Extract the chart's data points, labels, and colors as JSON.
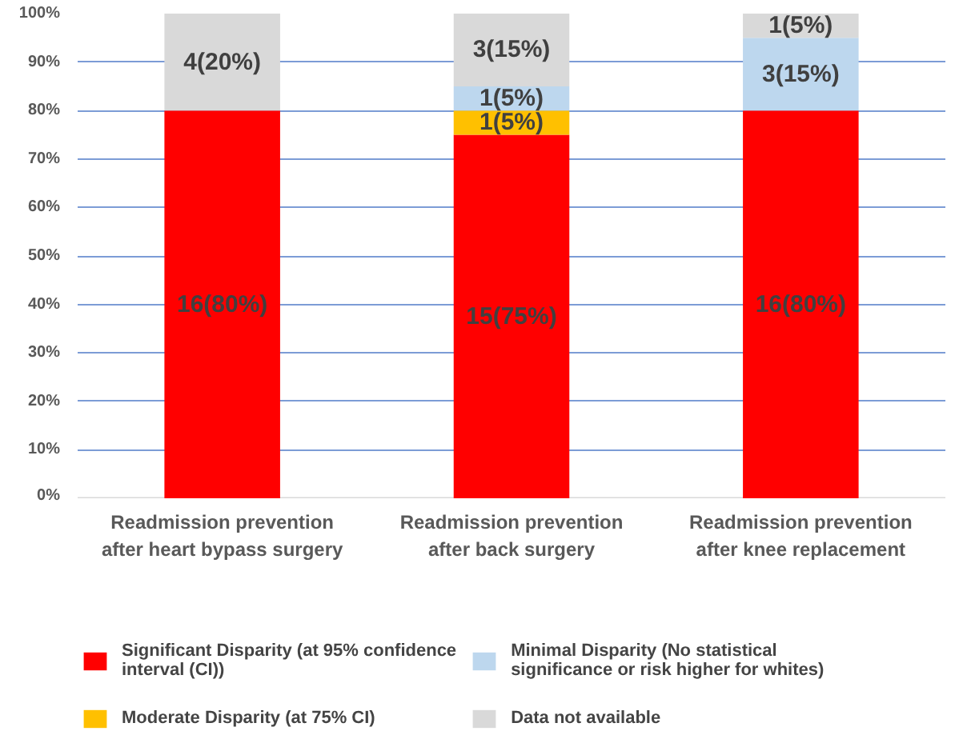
{
  "chart_data": {
    "type": "bar",
    "stacked": true,
    "categories": [
      "Readmission prevention after heart bypass surgery",
      "Readmission prevention after back surgery",
      "Readmission prevention after knee replacement"
    ],
    "series": [
      {
        "name": "Significant Disparity (at 95% confidence interval (CI))",
        "color": "#ff0000",
        "values": [
          80,
          75,
          80
        ],
        "value_labels": [
          "16(80%)",
          "15(75%)",
          "16(80%)"
        ]
      },
      {
        "name": "Moderate Disparity (at 75% CI)",
        "color": "#ffc000",
        "values": [
          null,
          5,
          null
        ],
        "value_labels": [
          null,
          "1(5%)",
          null
        ]
      },
      {
        "name": "Minimal Disparity (No statistical significance or risk higher for whites)",
        "color": "#bdd7ee",
        "values": [
          null,
          5,
          15
        ],
        "value_labels": [
          null,
          "1(5%)",
          "3(15%)"
        ]
      },
      {
        "name": "Data not available",
        "color": "#d9d9d9",
        "values": [
          20,
          15,
          5
        ],
        "value_labels": [
          "4(20%)",
          "3(15%)",
          "1(5%)"
        ]
      }
    ],
    "ylim": [
      0,
      100
    ],
    "yticks": [
      {
        "value": 0,
        "label": "0%"
      },
      {
        "value": 10,
        "label": "10%"
      },
      {
        "value": 20,
        "label": "20%"
      },
      {
        "value": 30,
        "label": "30%"
      },
      {
        "value": 40,
        "label": "40%"
      },
      {
        "value": 50,
        "label": "50%"
      },
      {
        "value": 60,
        "label": "60%"
      },
      {
        "value": 70,
        "label": "70%"
      },
      {
        "value": 80,
        "label": "80%"
      },
      {
        "value": 90,
        "label": "90%"
      },
      {
        "value": 100,
        "label": "100%"
      }
    ],
    "grid": "y",
    "legend": "bottom"
  }
}
